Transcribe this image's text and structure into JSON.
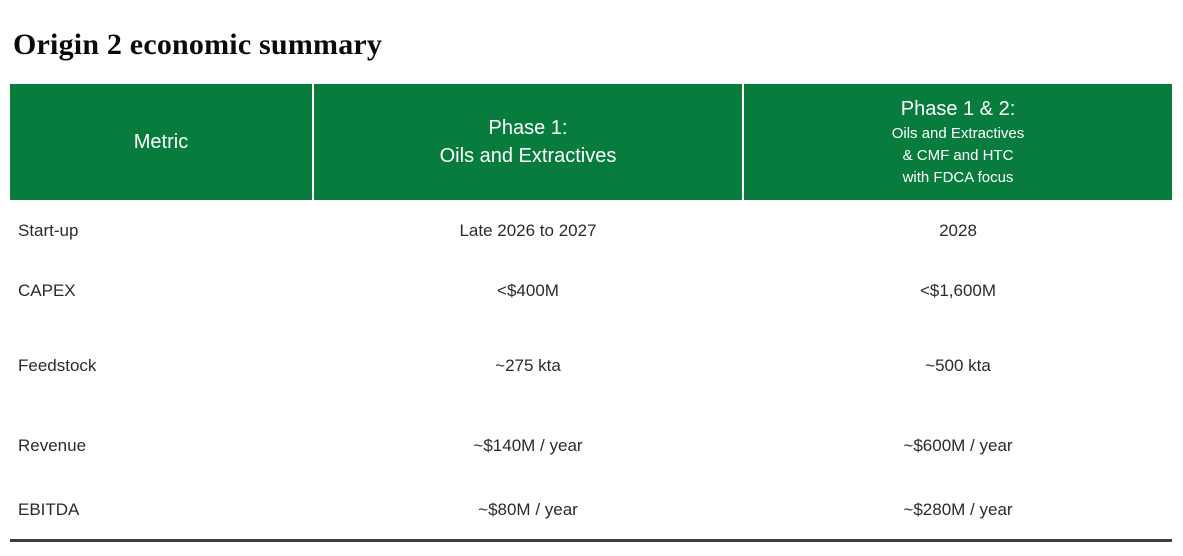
{
  "title": "Origin 2 economic summary",
  "colors": {
    "header_bg": "#077C3C",
    "header_text": "#FFFFFF",
    "body_text": "#2B2B2B",
    "bottom_rule": "#3D3D3D"
  },
  "table": {
    "columns": [
      {
        "id": "metric",
        "lines": [
          "Metric"
        ]
      },
      {
        "id": "phase1",
        "lines": [
          "Phase 1:",
          "Oils and Extractives"
        ]
      },
      {
        "id": "phase12",
        "lines": [
          "Phase 1 & 2:",
          "Oils and Extractives",
          "& CMF and HTC",
          "with FDCA focus"
        ]
      }
    ],
    "rows": [
      {
        "metric": "Start-up",
        "phase1": "Late 2026 to 2027",
        "phase12": "2028"
      },
      {
        "metric": "CAPEX",
        "phase1": "<$400M",
        "phase12": "<$1,600M"
      },
      {
        "metric": "Feedstock",
        "phase1": "~275 kta",
        "phase12": "~500 kta"
      },
      {
        "metric": "Revenue",
        "phase1": "~$140M / year",
        "phase12": "~$600M / year"
      },
      {
        "metric": "EBITDA",
        "phase1": "~$80M / year",
        "phase12": "~$280M / year"
      }
    ]
  }
}
